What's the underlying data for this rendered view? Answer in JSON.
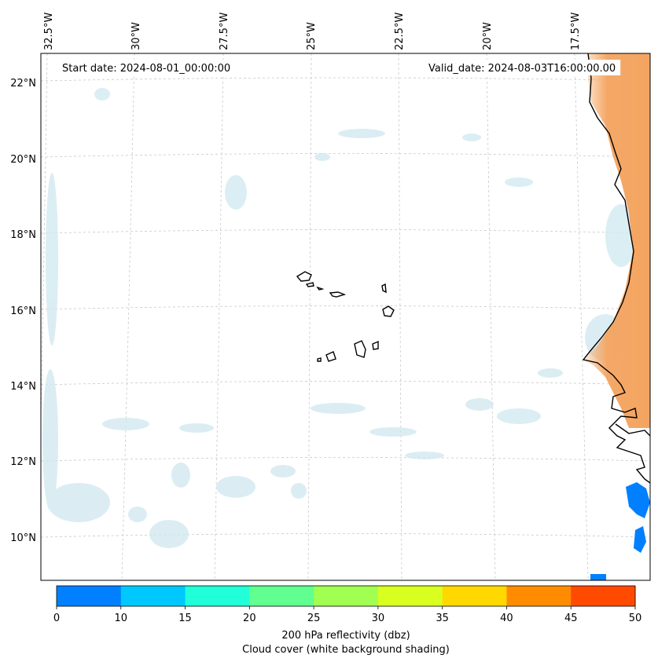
{
  "map": {
    "start_date_label": "Start date: 2024-08-01_00:00:00",
    "valid_date_label": "Valid_date: 2024-08-03T16:00:00.00",
    "lon_ticks": [
      "32.5°W",
      "30°W",
      "27.5°W",
      "25°W",
      "22.5°W",
      "20°W",
      "17.5°W"
    ],
    "lat_ticks": [
      "22°N",
      "20°N",
      "18°N",
      "16°N",
      "14°N",
      "12°N",
      "10°N"
    ],
    "colors": {
      "land_warm": "#f4a460",
      "cloud": "#cfe8f0",
      "reflectivity_low": "#0080ff"
    }
  },
  "colorbar": {
    "ticks": [
      "0",
      "10",
      "15",
      "20",
      "25",
      "30",
      "35",
      "40",
      "45",
      "50"
    ],
    "colors": [
      "#0080ff",
      "#00c8ff",
      "#20ffd8",
      "#60ff90",
      "#a0ff50",
      "#d8ff20",
      "#ffd800",
      "#ff8c00",
      "#ff4a00"
    ],
    "label_line1": "200 hPa reflectivity (dbz)",
    "label_line2": "Cloud cover (white background shading)"
  }
}
